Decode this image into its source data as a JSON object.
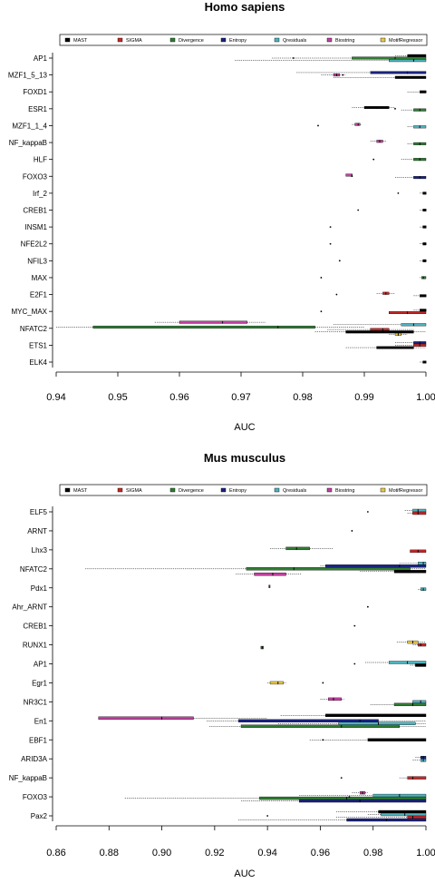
{
  "colors": {
    "MAST": "#000000",
    "SIGMA": "#c62828",
    "Divergence": "#2e7d32",
    "Entropy": "#1a237e",
    "Qresiduals": "#4fb3bf",
    "Biostring": "#c2409f",
    "MotifRegressor": "#e6c84a"
  },
  "chart_data": [
    {
      "type": "box",
      "title": "Homo sapiens",
      "xlabel": "AUC",
      "xlim": [
        0.94,
        1.0
      ],
      "xticks": [
        "0.94",
        "0.95",
        "0.96",
        "0.97",
        "0.98",
        "0.99",
        "1.00"
      ],
      "legend": [
        "MAST",
        "SIGMA",
        "Divergence",
        "Entropy",
        "Qresiduals",
        "Biostring",
        "MotifRegressor"
      ],
      "legend_position": "top",
      "categories": [
        "AP1",
        "MZF1_5_13",
        "FOXD1",
        "ESR1",
        "MZF1_1_4",
        "NF_kappaB",
        "HLF",
        "FOXO3",
        "Irf_2",
        "CREB1",
        "INSM1",
        "NFE2L2",
        "NFIL3",
        "MAX",
        "E2F1",
        "MYC_MAX",
        "NFATC2",
        "ETS1",
        "ELK4"
      ],
      "boxes": [
        {
          "category": "AP1",
          "method": "MAST",
          "min": 0.995,
          "q1": 0.997,
          "median": 0.998,
          "q3": 1.0,
          "max": 1.0
        },
        {
          "category": "AP1",
          "method": "Divergence",
          "min": 0.975,
          "q1": 0.988,
          "median": 0.995,
          "q3": 1.0,
          "max": 1.0
        },
        {
          "category": "AP1",
          "method": "Qresiduals",
          "min": 0.969,
          "q1": 0.994,
          "median": 0.998,
          "q3": 1.0,
          "max": 1.0
        },
        {
          "category": "MZF1_5_13",
          "method": "Entropy",
          "min": 0.979,
          "q1": 0.991,
          "median": 0.997,
          "q3": 1.0,
          "max": 1.0
        },
        {
          "category": "MZF1_5_13",
          "method": "Biostring",
          "min": 0.983,
          "q1": 0.985,
          "median": 0.9855,
          "q3": 0.986,
          "max": 0.987
        },
        {
          "category": "MZF1_5_13",
          "method": "MAST",
          "min": 0.985,
          "q1": 0.995,
          "median": 0.998,
          "q3": 1.0,
          "max": 1.0
        },
        {
          "category": "FOXD1",
          "method": "MAST",
          "min": 0.997,
          "q1": 0.999,
          "median": 1.0,
          "q3": 1.0,
          "max": 1.0
        },
        {
          "category": "ESR1",
          "method": "MAST",
          "min": 0.988,
          "q1": 0.99,
          "median": 0.992,
          "q3": 0.994,
          "max": 0.995
        },
        {
          "category": "ESR1",
          "method": "Divergence",
          "min": 0.996,
          "q1": 0.998,
          "median": 0.999,
          "q3": 1.0,
          "max": 1.0
        },
        {
          "category": "MZF1_1_4",
          "method": "Biostring",
          "min": 0.988,
          "q1": 0.9885,
          "median": 0.989,
          "q3": 0.9893,
          "max": 0.9895
        },
        {
          "category": "MZF1_1_4",
          "method": "Qresiduals",
          "min": 0.997,
          "q1": 0.998,
          "median": 0.999,
          "q3": 1.0,
          "max": 1.0
        },
        {
          "category": "NF_kappaB",
          "method": "Biostring",
          "min": 0.991,
          "q1": 0.992,
          "median": 0.9925,
          "q3": 0.993,
          "max": 0.9935
        },
        {
          "category": "NF_kappaB",
          "method": "Divergence",
          "min": 0.997,
          "q1": 0.998,
          "median": 0.999,
          "q3": 1.0,
          "max": 1.0
        },
        {
          "category": "HLF",
          "method": "Divergence",
          "min": 0.996,
          "q1": 0.998,
          "median": 0.999,
          "q3": 1.0,
          "max": 1.0
        },
        {
          "category": "FOXO3",
          "method": "Biostring",
          "min": 0.987,
          "q1": 0.987,
          "median": 0.988,
          "q3": 0.988,
          "max": 0.988
        },
        {
          "category": "FOXO3",
          "method": "Entropy",
          "min": 0.995,
          "q1": 0.998,
          "median": 0.999,
          "q3": 1.0,
          "max": 1.0
        },
        {
          "category": "Irf_2",
          "method": "MAST",
          "min": 0.999,
          "q1": 0.9995,
          "median": 1.0,
          "q3": 1.0,
          "max": 1.0
        },
        {
          "category": "CREB1",
          "method": "MAST",
          "min": 0.999,
          "q1": 0.9995,
          "median": 1.0,
          "q3": 1.0,
          "max": 1.0
        },
        {
          "category": "INSM1",
          "method": "MAST",
          "min": 0.999,
          "q1": 0.9995,
          "median": 1.0,
          "q3": 1.0,
          "max": 1.0
        },
        {
          "category": "NFE2L2",
          "method": "MAST",
          "min": 0.999,
          "q1": 0.9995,
          "median": 1.0,
          "q3": 1.0,
          "max": 1.0
        },
        {
          "category": "NFIL3",
          "method": "MAST",
          "min": 0.999,
          "q1": 0.9995,
          "median": 1.0,
          "q3": 1.0,
          "max": 1.0
        },
        {
          "category": "MAX",
          "method": "Divergence",
          "min": 0.999,
          "q1": 0.9993,
          "median": 0.9996,
          "q3": 1.0,
          "max": 1.0
        },
        {
          "category": "E2F1",
          "method": "SIGMA",
          "min": 0.992,
          "q1": 0.993,
          "median": 0.9935,
          "q3": 0.994,
          "max": 0.995
        },
        {
          "category": "E2F1",
          "method": "MAST",
          "min": 0.998,
          "q1": 0.999,
          "median": 1.0,
          "q3": 1.0,
          "max": 1.0
        },
        {
          "category": "MYC_MAX",
          "method": "MAST",
          "min": 0.998,
          "q1": 0.999,
          "median": 1.0,
          "q3": 1.0,
          "max": 1.0
        },
        {
          "category": "MYC_MAX",
          "method": "SIGMA",
          "min": 0.994,
          "q1": 0.994,
          "median": 0.997,
          "q3": 1.0,
          "max": 1.0
        },
        {
          "category": "NFATC2",
          "method": "Biostring",
          "min": 0.956,
          "q1": 0.96,
          "median": 0.967,
          "q3": 0.971,
          "max": 0.974
        },
        {
          "category": "NFATC2",
          "method": "Qresiduals",
          "min": 0.985,
          "q1": 0.996,
          "median": 0.998,
          "q3": 1.0,
          "max": 1.0
        },
        {
          "category": "NFATC2",
          "method": "Divergence",
          "min": 0.94,
          "q1": 0.946,
          "median": 0.976,
          "q3": 0.982,
          "max": 0.99
        },
        {
          "category": "NFATC2",
          "method": "SIGMA",
          "min": 0.984,
          "q1": 0.991,
          "median": 0.993,
          "q3": 0.994,
          "max": 0.998
        },
        {
          "category": "NFATC2",
          "method": "MAST",
          "min": 0.982,
          "q1": 0.987,
          "median": 0.995,
          "q3": 0.998,
          "max": 1.0
        },
        {
          "category": "NFATC2",
          "method": "MotifRegressor",
          "min": 0.994,
          "q1": 0.995,
          "median": 0.9955,
          "q3": 0.996,
          "max": 0.997
        },
        {
          "category": "ETS1",
          "method": "Entropy",
          "min": 0.995,
          "q1": 0.998,
          "median": 0.999,
          "q3": 1.0,
          "max": 1.0
        },
        {
          "category": "ETS1",
          "method": "SIGMA",
          "min": 0.995,
          "q1": 0.998,
          "median": 0.999,
          "q3": 1.0,
          "max": 1.0
        },
        {
          "category": "ETS1",
          "method": "MAST",
          "min": 0.987,
          "q1": 0.992,
          "median": 0.996,
          "q3": 0.998,
          "max": 1.0
        },
        {
          "category": "ELK4",
          "method": "MAST",
          "min": 0.999,
          "q1": 0.9995,
          "median": 1.0,
          "q3": 1.0,
          "max": 1.0
        }
      ],
      "outliers": [
        {
          "category": "AP1",
          "x": 0.9785
        },
        {
          "category": "MZF1_5_13",
          "x": 0.9865
        },
        {
          "category": "ESR1",
          "x": 0.995
        },
        {
          "category": "MZF1_1_4",
          "x": 0.9825
        },
        {
          "category": "HLF",
          "x": 0.9915
        },
        {
          "category": "FOXO3",
          "x": 0.988
        },
        {
          "category": "Irf_2",
          "x": 0.9955
        },
        {
          "category": "CREB1",
          "x": 0.989
        },
        {
          "category": "INSM1",
          "x": 0.9845
        },
        {
          "category": "NFE2L2",
          "x": 0.9845
        },
        {
          "category": "NFIL3",
          "x": 0.986
        },
        {
          "category": "MAX",
          "x": 0.983
        },
        {
          "category": "E2F1",
          "x": 0.9855
        },
        {
          "category": "MYC_MAX",
          "x": 0.983
        }
      ]
    },
    {
      "type": "box",
      "title": "Mus musculus",
      "xlabel": "AUC",
      "xlim": [
        0.86,
        1.0
      ],
      "xticks": [
        "0.86",
        "0.88",
        "0.90",
        "0.92",
        "0.94",
        "0.96",
        "0.98",
        "1.00"
      ],
      "legend": [
        "MAST",
        "SIGMA",
        "Divergence",
        "Entropy",
        "Qresiduals",
        "Biostring",
        "MotifRegressor"
      ],
      "legend_position": "top",
      "categories": [
        "ELF5",
        "ARNT",
        "Lhx3",
        "NFATC2",
        "Pdx1",
        "Ahr_ARNT",
        "CREB1",
        "RUNX1",
        "AP1",
        "Egr1",
        "NR3C1",
        "En1",
        "EBF1",
        "ARID3A",
        "NF_kappaB",
        "FOXO3",
        "Pax2"
      ],
      "boxes": [
        {
          "category": "ELF5",
          "method": "Qresiduals",
          "min": 0.992,
          "q1": 0.995,
          "median": 0.997,
          "q3": 1.0,
          "max": 1.0
        },
        {
          "category": "ELF5",
          "method": "SIGMA",
          "min": 0.993,
          "q1": 0.995,
          "median": 0.997,
          "q3": 1.0,
          "max": 1.0
        },
        {
          "category": "Lhx3",
          "method": "Divergence",
          "min": 0.941,
          "q1": 0.947,
          "median": 0.951,
          "q3": 0.956,
          "max": 0.965
        },
        {
          "category": "Lhx3",
          "method": "SIGMA",
          "min": 0.994,
          "q1": 0.994,
          "median": 0.997,
          "q3": 1.0,
          "max": 1.0
        },
        {
          "category": "NFATC2",
          "method": "Qresiduals",
          "min": 0.99,
          "q1": 0.997,
          "median": 0.999,
          "q3": 1.0,
          "max": 1.0
        },
        {
          "category": "NFATC2",
          "method": "Entropy",
          "min": 0.96,
          "q1": 0.962,
          "median": 0.99,
          "q3": 1.0,
          "max": 1.0
        },
        {
          "category": "NFATC2",
          "method": "Divergence",
          "min": 0.871,
          "q1": 0.932,
          "median": 0.95,
          "q3": 0.994,
          "max": 1.0
        },
        {
          "category": "NFATC2",
          "method": "MAST",
          "min": 0.975,
          "q1": 0.988,
          "median": 0.994,
          "q3": 1.0,
          "max": 1.0
        },
        {
          "category": "NFATC2",
          "method": "Biostring",
          "min": 0.928,
          "q1": 0.935,
          "median": 0.942,
          "q3": 0.947,
          "max": 0.953
        },
        {
          "category": "Pdx1",
          "method": "MotifRegressor",
          "min": 0.9405,
          "q1": 0.9405,
          "median": 0.9407,
          "q3": 0.941,
          "max": 0.941
        },
        {
          "category": "Pdx1",
          "method": "Qresiduals",
          "min": 0.997,
          "q1": 0.998,
          "median": 0.999,
          "q3": 1.0,
          "max": 1.0
        },
        {
          "category": "RUNX1",
          "method": "MotifRegressor",
          "min": 0.989,
          "q1": 0.993,
          "median": 0.995,
          "q3": 0.997,
          "max": 1.0
        },
        {
          "category": "RUNX1",
          "method": "SIGMA",
          "min": 0.995,
          "q1": 0.997,
          "median": 0.998,
          "q3": 1.0,
          "max": 1.0
        },
        {
          "category": "RUNX1",
          "method": "Divergence",
          "min": 0.9375,
          "q1": 0.9375,
          "median": 0.938,
          "q3": 0.9385,
          "max": 0.9385
        },
        {
          "category": "AP1",
          "method": "Qresiduals",
          "min": 0.977,
          "q1": 0.986,
          "median": 0.993,
          "q3": 1.0,
          "max": 1.0
        },
        {
          "category": "AP1",
          "method": "MAST",
          "min": 0.994,
          "q1": 0.996,
          "median": 0.998,
          "q3": 1.0,
          "max": 1.0
        },
        {
          "category": "Egr1",
          "method": "MotifRegressor",
          "min": 0.94,
          "q1": 0.941,
          "median": 0.944,
          "q3": 0.946,
          "max": 0.947
        },
        {
          "category": "NR3C1",
          "method": "Biostring",
          "min": 0.96,
          "q1": 0.963,
          "median": 0.965,
          "q3": 0.968,
          "max": 0.969
        },
        {
          "category": "NR3C1",
          "method": "Qresiduals",
          "min": 0.995,
          "q1": 0.995,
          "median": 0.998,
          "q3": 1.0,
          "max": 1.0
        },
        {
          "category": "NR3C1",
          "method": "Divergence",
          "min": 0.979,
          "q1": 0.988,
          "median": 0.995,
          "q3": 1.0,
          "max": 1.0
        },
        {
          "category": "En1",
          "method": "MAST",
          "min": 0.945,
          "q1": 0.962,
          "median": 0.987,
          "q3": 1.0,
          "max": 1.0
        },
        {
          "category": "En1",
          "method": "Biostring",
          "min": 0.876,
          "q1": 0.876,
          "median": 0.9,
          "q3": 0.912,
          "max": 0.94
        },
        {
          "category": "En1",
          "method": "Entropy",
          "min": 0.917,
          "q1": 0.929,
          "median": 0.975,
          "q3": 0.982,
          "max": 1.0
        },
        {
          "category": "En1",
          "method": "Qresiduals",
          "min": 0.944,
          "q1": 0.967,
          "median": 0.982,
          "q3": 0.996,
          "max": 1.0
        },
        {
          "category": "En1",
          "method": "Divergence",
          "min": 0.918,
          "q1": 0.93,
          "median": 0.968,
          "q3": 0.99,
          "max": 1.0
        },
        {
          "category": "EBF1",
          "method": "MAST",
          "min": 0.956,
          "q1": 0.978,
          "median": 0.99,
          "q3": 1.0,
          "max": 1.0
        },
        {
          "category": "ARID3A",
          "method": "Entropy",
          "min": 0.996,
          "q1": 0.998,
          "median": 0.999,
          "q3": 1.0,
          "max": 1.0
        },
        {
          "category": "ARID3A",
          "method": "Qresiduals",
          "min": 0.995,
          "q1": 0.998,
          "median": 0.999,
          "q3": 1.0,
          "max": 1.0
        },
        {
          "category": "NF_kappaB",
          "method": "SIGMA",
          "min": 0.99,
          "q1": 0.993,
          "median": 0.995,
          "q3": 1.0,
          "max": 1.0
        },
        {
          "category": "FOXO3",
          "method": "Biostring",
          "min": 0.972,
          "q1": 0.975,
          "median": 0.976,
          "q3": 0.977,
          "max": 0.978
        },
        {
          "category": "FOXO3",
          "method": "Qresiduals",
          "min": 0.952,
          "q1": 0.98,
          "median": 0.99,
          "q3": 1.0,
          "max": 1.0
        },
        {
          "category": "FOXO3",
          "method": "Divergence",
          "min": 0.886,
          "q1": 0.937,
          "median": 0.97,
          "q3": 1.0,
          "max": 1.0
        },
        {
          "category": "FOXO3",
          "method": "Entropy",
          "min": 0.93,
          "q1": 0.952,
          "median": 0.975,
          "q3": 1.0,
          "max": 1.0
        },
        {
          "category": "Pax2",
          "method": "MAST",
          "min": 0.966,
          "q1": 0.982,
          "median": 0.99,
          "q3": 1.0,
          "max": 1.0
        },
        {
          "category": "Pax2",
          "method": "Qresiduals",
          "min": 0.978,
          "q1": 0.983,
          "median": 0.992,
          "q3": 1.0,
          "max": 1.0
        },
        {
          "category": "Pax2",
          "method": "SIGMA",
          "min": 0.966,
          "q1": 0.993,
          "median": 0.995,
          "q3": 1.0,
          "max": 1.0
        },
        {
          "category": "Pax2",
          "method": "Entropy",
          "min": 0.929,
          "q1": 0.97,
          "median": 0.985,
          "q3": 1.0,
          "max": 1.0
        }
      ],
      "outliers": [
        {
          "category": "ELF5",
          "x": 0.978
        },
        {
          "category": "ARNT",
          "x": 0.972
        },
        {
          "category": "Ahr_ARNT",
          "x": 0.978
        },
        {
          "category": "CREB1",
          "x": 0.973
        },
        {
          "category": "AP1",
          "x": 0.973
        },
        {
          "category": "Egr1",
          "x": 0.961
        },
        {
          "category": "EBF1",
          "x": 0.961
        },
        {
          "category": "EBF1",
          "x": 0.988
        },
        {
          "category": "NF_kappaB",
          "x": 0.968
        },
        {
          "category": "Pax2",
          "x": 0.94
        },
        {
          "category": "FOXO3",
          "x": 0.971
        }
      ]
    }
  ]
}
